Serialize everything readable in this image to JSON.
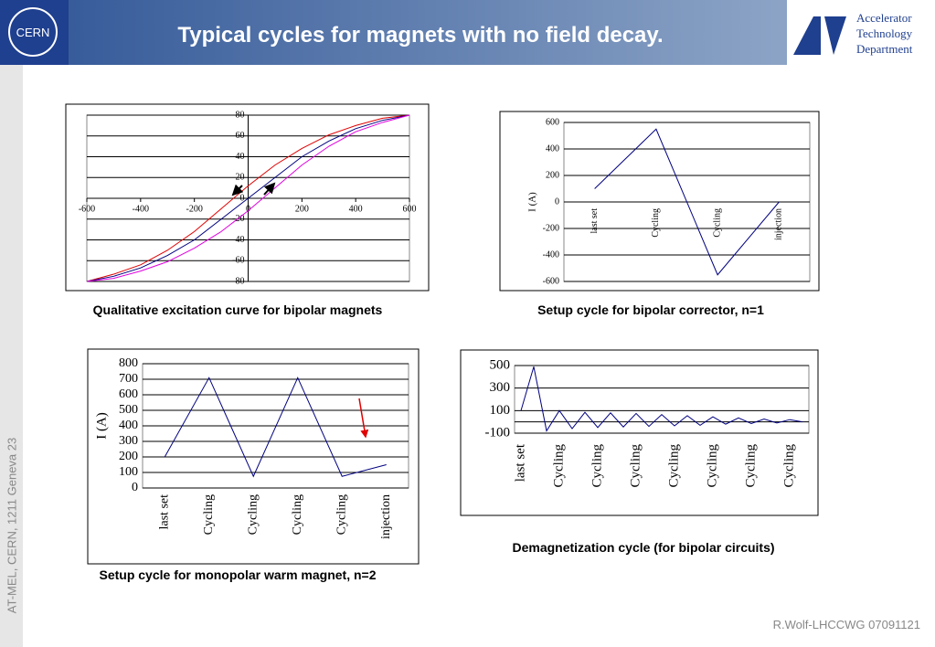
{
  "header": {
    "title": "Typical cycles for magnets with no field decay.",
    "logo_text": "CERN",
    "department": [
      "Accelerator",
      "Technology",
      "Department"
    ]
  },
  "side_text": "AT-MEL, CERN, 1211 Geneva 23",
  "footer": "R.Wolf-LHCCWG 07091121",
  "chart_data": [
    {
      "type": "line",
      "caption": "Qualitative excitation curve for bipolar magnets",
      "x": [
        -600,
        -500,
        -400,
        -300,
        -200,
        -100,
        0,
        100,
        200,
        300,
        400,
        500,
        600
      ],
      "series": [
        {
          "color": "#e00000",
          "values": [
            -80,
            -73,
            -64,
            -50,
            -32,
            -10,
            12,
            32,
            48,
            61,
            70,
            77,
            80
          ]
        },
        {
          "color": "#000080",
          "values": [
            -80,
            -75,
            -67,
            -55,
            -40,
            -20,
            0,
            20,
            40,
            55,
            67,
            75,
            80
          ]
        },
        {
          "color": "#e000e0",
          "values": [
            -80,
            -77,
            -70,
            -61,
            -48,
            -32,
            -12,
            10,
            32,
            50,
            64,
            73,
            80
          ]
        }
      ],
      "xlim": [
        -600,
        600
      ],
      "xticks": [
        -600,
        -400,
        -200,
        0,
        200,
        400,
        600
      ],
      "ylim": [
        -80,
        80
      ],
      "yticks": [
        -80,
        -60,
        -40,
        -20,
        0,
        20,
        40,
        60,
        80
      ],
      "grid": true
    },
    {
      "type": "line",
      "caption": "Setup cycle for bipolar corrector, n=1",
      "ylabel": "I (A)",
      "categories": [
        "last set",
        "Cycling",
        "Cycling",
        "injection"
      ],
      "values": [
        100,
        550,
        -550,
        0
      ],
      "color": "#000080",
      "ylim": [
        -600,
        600
      ],
      "yticks": [
        -600,
        -400,
        -200,
        0,
        200,
        400,
        600
      ],
      "grid": true
    },
    {
      "type": "line",
      "caption": "Setup cycle for monopolar warm magnet, n=2",
      "ylabel": "I (A)",
      "categories": [
        "last set",
        "Cycling",
        "Cycling",
        "Cycling",
        "Cycling",
        "injection"
      ],
      "values": [
        200,
        710,
        75,
        710,
        75,
        150
      ],
      "color": "#000080",
      "ylim": [
        0,
        800
      ],
      "yticks": [
        0,
        100,
        200,
        300,
        400,
        500,
        600,
        700,
        800
      ],
      "grid": true
    },
    {
      "type": "line",
      "caption": "Demagnetization cycle (for bipolar circuits)",
      "categories": [
        "last set",
        null,
        null,
        "Cycling",
        null,
        null,
        "Cycling",
        null,
        null,
        "Cycling",
        null,
        null,
        "Cycling",
        null,
        null,
        "Cycling",
        null,
        null,
        "Cycling",
        null,
        null,
        "Cycling",
        null
      ],
      "values": [
        100,
        490,
        -80,
        100,
        -60,
        85,
        -50,
        80,
        -45,
        75,
        -40,
        65,
        -35,
        55,
        -30,
        45,
        -20,
        35,
        -15,
        25,
        -10,
        20,
        0
      ],
      "color": "#000080",
      "ylim": [
        -100,
        500
      ],
      "yticks": [
        -100,
        100,
        300,
        500
      ],
      "grid": true
    }
  ]
}
